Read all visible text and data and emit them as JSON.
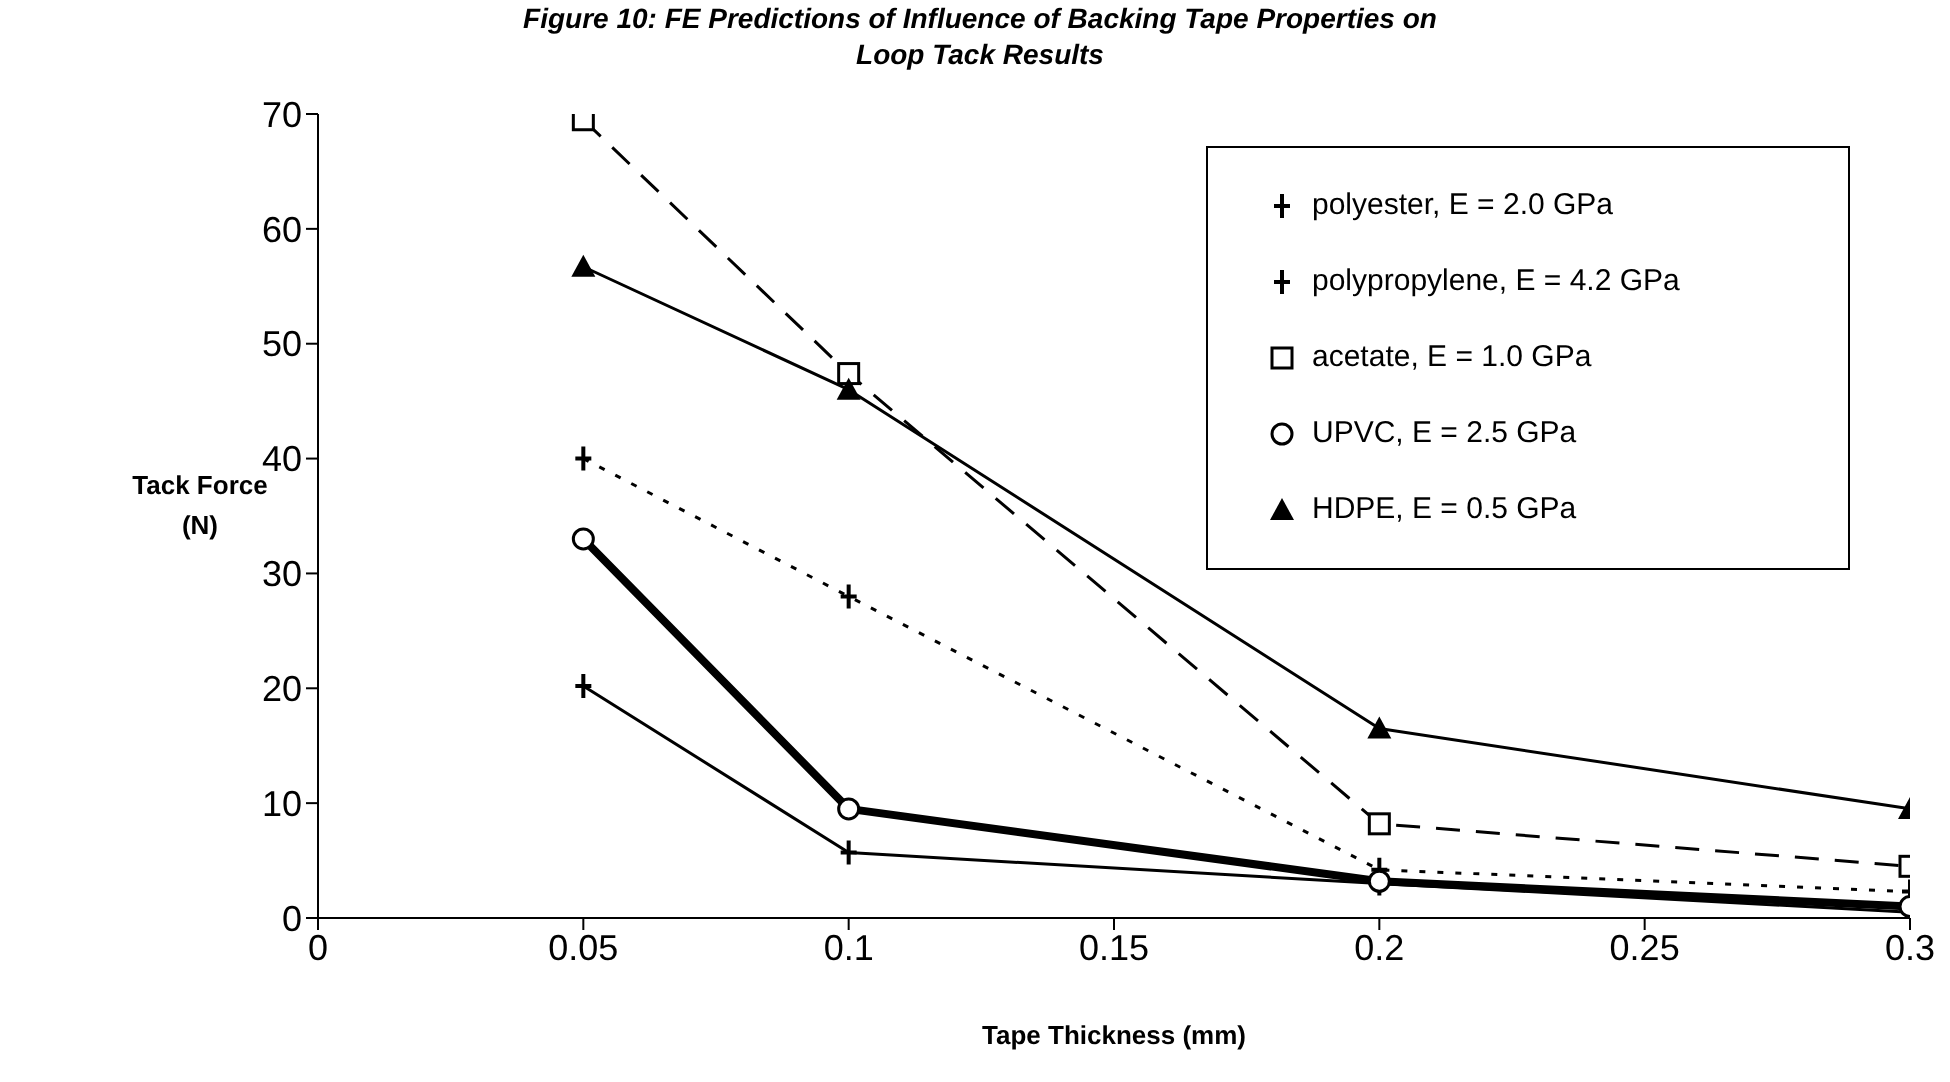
{
  "chart_data": {
    "type": "line",
    "title": "Figure 10:  FE Predictions of Influence of Backing Tape Properties on Loop Tack Results",
    "xlabel": "Tape Thickness (mm)",
    "ylabel": "Tack Force (N)",
    "x": [
      0.05,
      0.1,
      0.2,
      0.3
    ],
    "series": [
      {
        "name": "polyester, E = 2.0 GPa",
        "color": "#000000",
        "values": [
          40,
          28,
          4.2,
          2.3
        ],
        "marker": "cross",
        "line_style": "dotted"
      },
      {
        "name": "polypropylene, E = 4.2 GPa",
        "color": "#000000",
        "values": [
          20.2,
          5.7,
          3,
          0.5
        ],
        "marker": "cross",
        "line_style": "solid"
      },
      {
        "name": "acetate, E = 1.0 GPa",
        "color": "#000000",
        "values": [
          69.5,
          47.4,
          8.2,
          4.5
        ],
        "marker": "square",
        "line_style": "dashed"
      },
      {
        "name": "UPVC, E = 2.5 GPa",
        "color": "#000000",
        "values": [
          33,
          9.5,
          3.2,
          1
        ],
        "marker": "circle",
        "line_style": "solid"
      },
      {
        "name": "HDPE, E = 0.5 GPa",
        "color": "#000000",
        "values": [
          56.7,
          46,
          16.5,
          9.5
        ],
        "marker": "triangle",
        "line_style": "solid"
      }
    ],
    "xlim": [
      0,
      0.3
    ],
    "xticks": [
      0,
      0.05,
      0.1,
      0.15,
      0.2,
      0.25,
      0.3
    ],
    "ylim": [
      0,
      70
    ],
    "yticks": [
      0,
      10,
      20,
      30,
      40,
      50,
      60,
      70
    ],
    "grid": false,
    "legend": "top right"
  }
}
